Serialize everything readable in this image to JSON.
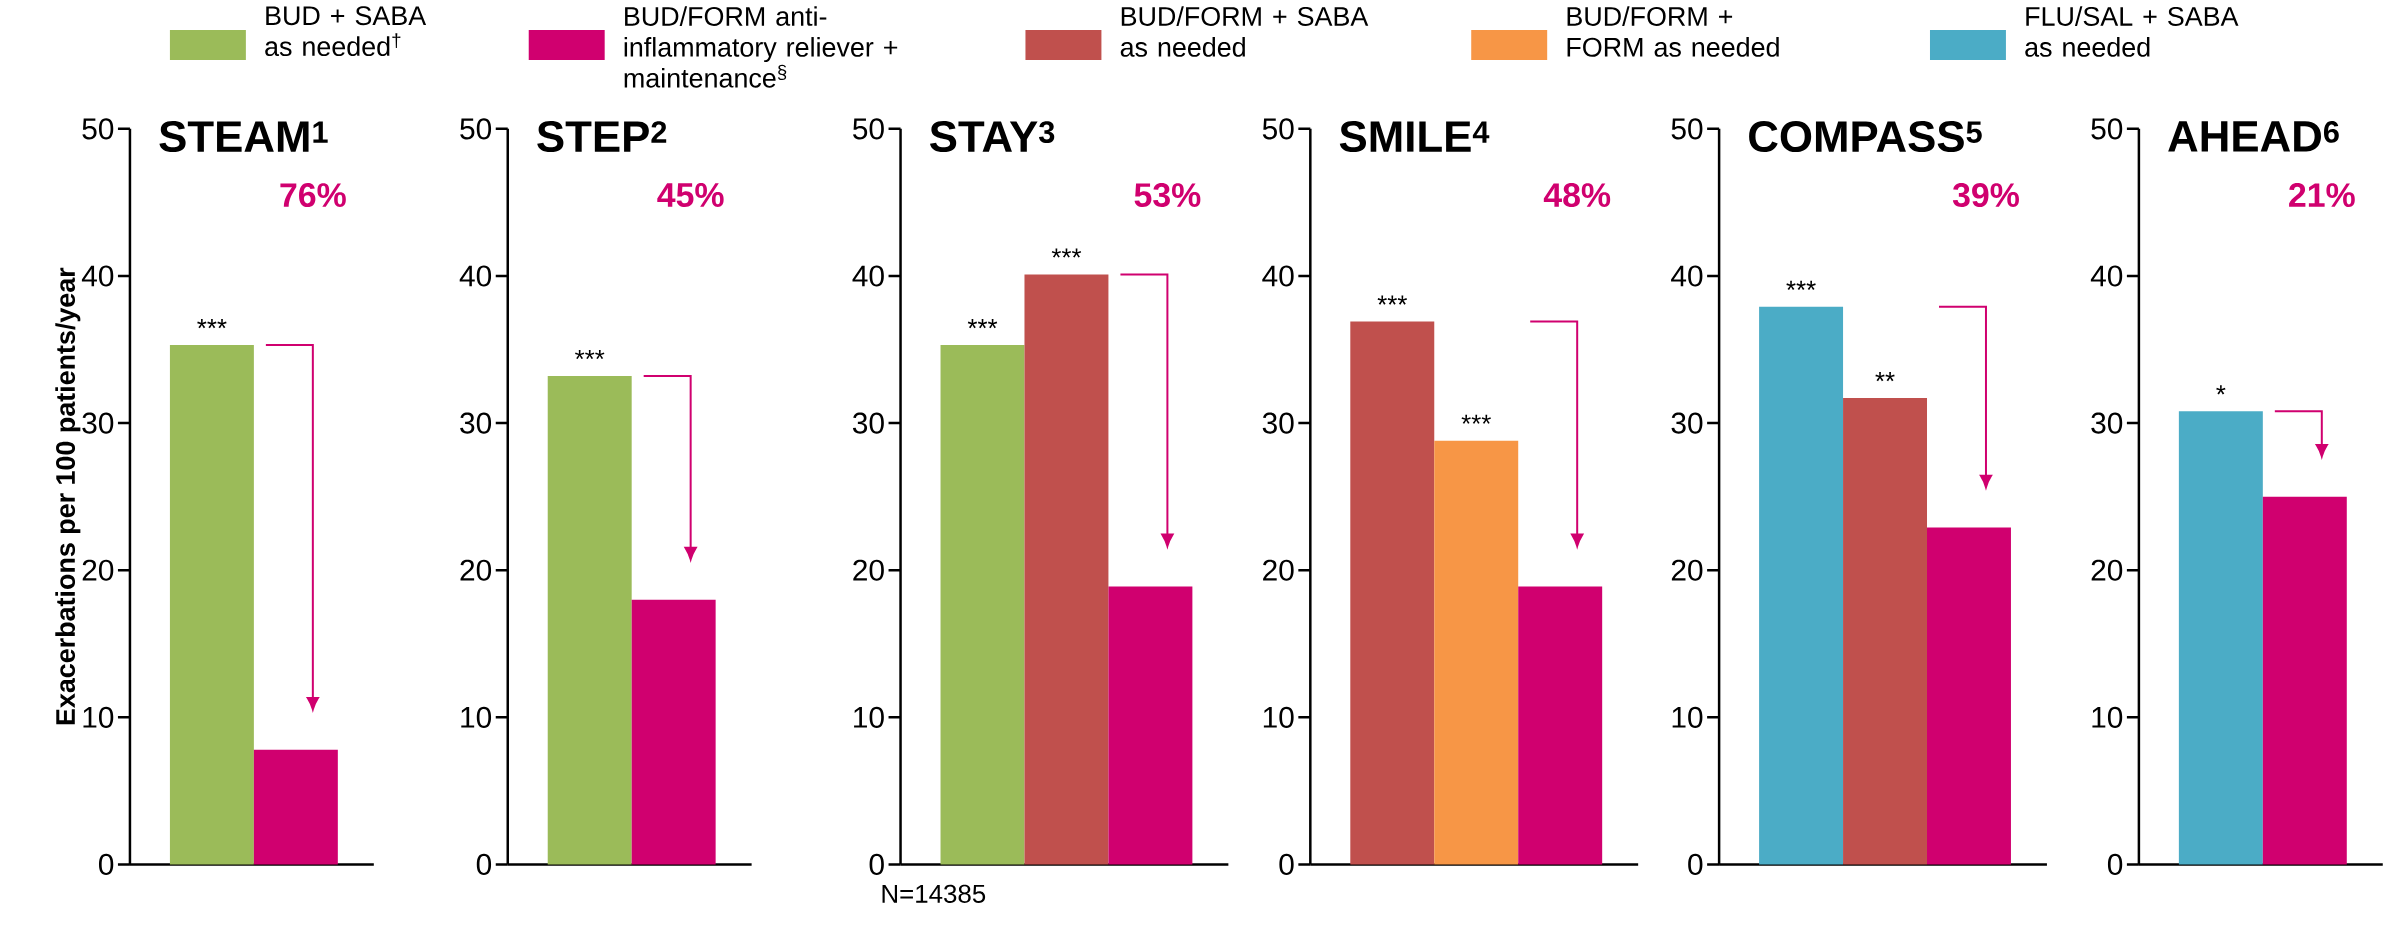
{
  "chart_data": [
    {
      "type": "bar",
      "title": "STEAM$^{1}$",
      "ylabel": "Exacerbations per 100 patients/year",
      "categories": [
        null
      ],
      "ylim": [
        0,
        50
      ],
      "yticks": [
        0,
        10,
        20,
        30,
        40,
        50
      ],
      "legend": "top",
      "annotations": [
        "76%"
      ],
      "series": [
        {
          "name": "BUD + SABA as needed$^{†}$",
          "color": "#9bbb59",
          "values": [
            35.3
          ],
          "value_labels": [
            "***"
          ]
        },
        {
          "name": "BUD/FORM anti-inflammatory reliever + maintenance$^{§}$",
          "color": "#d0006f",
          "values": [
            7.8
          ]
        }
      ]
    },
    {
      "type": "bar",
      "title": "STEP$^{2}$",
      "categories": [
        null
      ],
      "ylim": [
        0,
        50
      ],
      "yticks": [
        0,
        10,
        20,
        30,
        40,
        50
      ],
      "annotations": [
        "45%"
      ],
      "series": [
        {
          "color": "#9bbb59",
          "values": [
            33.2
          ],
          "value_labels": [
            "***"
          ]
        },
        {
          "color": "#d0006f",
          "values": [
            18.0
          ]
        }
      ]
    },
    {
      "type": "bar",
      "title": "STAY$^{3}$",
      "categories": [
        null
      ],
      "ylim": [
        0,
        50
      ],
      "yticks": [
        0,
        10,
        20,
        30,
        40,
        50
      ],
      "legend": "top",
      "annotations": [
        "53%",
        "N=14385"
      ],
      "series": [
        {
          "color": "#9bbb59",
          "values": [
            35.3
          ],
          "value_labels": [
            "***"
          ]
        },
        {
          "name": "BUD/FORM + SABA as needed",
          "color": "#c0504d",
          "values": [
            40.1
          ],
          "value_labels": [
            "***"
          ]
        },
        {
          "color": "#d0006f",
          "values": [
            18.9
          ]
        }
      ]
    },
    {
      "type": "bar",
      "title": "SMILE$^{4}$",
      "categories": [
        null
      ],
      "ylim": [
        0,
        50
      ],
      "yticks": [
        0,
        10,
        20,
        30,
        40,
        50
      ],
      "legend": "top",
      "annotations": [
        "48%"
      ],
      "series": [
        {
          "color": "#c0504d",
          "values": [
            36.9
          ],
          "value_labels": [
            "***"
          ]
        },
        {
          "name": "BUD/FORM + FORM as needed",
          "color": "#f79646",
          "values": [
            28.8
          ],
          "value_labels": [
            "***"
          ]
        },
        {
          "color": "#d0006f",
          "values": [
            18.9
          ]
        }
      ]
    },
    {
      "type": "bar",
      "title": "COMPASS$^{5}$",
      "categories": [
        null
      ],
      "ylim": [
        0,
        50
      ],
      "yticks": [
        0,
        10,
        20,
        30,
        40,
        50
      ],
      "legend": "top",
      "annotations": [
        "39%"
      ],
      "series": [
        {
          "name": "FLU/SAL + SABA as needed",
          "color": "#4bacc6",
          "values": [
            37.9
          ],
          "value_labels": [
            "***"
          ]
        },
        {
          "color": "#c0504d",
          "values": [
            31.7
          ],
          "value_labels": [
            "**"
          ]
        },
        {
          "color": "#d0006f",
          "values": [
            22.9
          ]
        }
      ]
    },
    {
      "type": "bar",
      "title": "AHEAD$^{6}$",
      "categories": [
        null
      ],
      "ylim": [
        0,
        50
      ],
      "yticks": [
        0,
        10,
        20,
        30,
        40,
        50
      ],
      "annotations": [
        "21%"
      ],
      "series": [
        {
          "color": "#4bacc6",
          "values": [
            30.8
          ],
          "value_labels": [
            "*"
          ]
        },
        {
          "color": "#d0006f",
          "values": [
            25.0
          ]
        }
      ]
    }
  ]
}
